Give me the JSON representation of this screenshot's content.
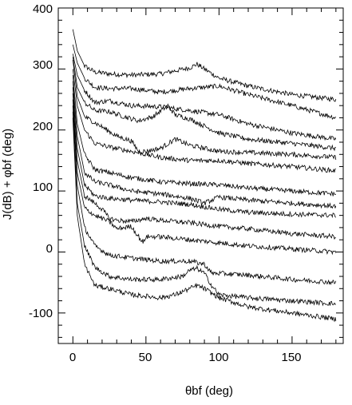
{
  "chart_data": {
    "type": "line",
    "title": "",
    "xlabel": "θbf (deg)",
    "ylabel": "J(dB) + φbf (deg)",
    "xlim": [
      -10,
      185
    ],
    "ylim": [
      -150,
      400
    ],
    "xticks": [
      0,
      50,
      100,
      150
    ],
    "yticks": [
      -100,
      0,
      100,
      200,
      300,
      400
    ],
    "grid": false,
    "series": [
      {
        "x": [
          0,
          3,
          8,
          15,
          25,
          40,
          60,
          80,
          85,
          90,
          100,
          120,
          150,
          180
        ],
        "y": [
          365,
          330,
          305,
          295,
          292,
          290,
          292,
          302,
          308,
          300,
          285,
          272,
          258,
          250
        ]
      },
      {
        "x": [
          0,
          3,
          8,
          15,
          25,
          40,
          60,
          80,
          100,
          120,
          150,
          180
        ],
        "y": [
          340,
          310,
          285,
          270,
          268,
          268,
          262,
          268,
          272,
          258,
          240,
          220
        ]
      },
      {
        "x": [
          0,
          3,
          8,
          15,
          25,
          40,
          60,
          80,
          100,
          120,
          150,
          180
        ],
        "y": [
          325,
          290,
          265,
          245,
          248,
          240,
          238,
          232,
          225,
          210,
          195,
          185
        ]
      },
      {
        "x": [
          0,
          3,
          8,
          15,
          25,
          35,
          45,
          55,
          65,
          70,
          80,
          100,
          120,
          150,
          180
        ],
        "y": [
          320,
          270,
          245,
          232,
          230,
          222,
          215,
          222,
          240,
          225,
          218,
          195,
          185,
          178,
          170
        ]
      },
      {
        "x": [
          0,
          3,
          8,
          15,
          20,
          30,
          40,
          45,
          50,
          60,
          70,
          80,
          100,
          150,
          180
        ],
        "y": [
          315,
          255,
          222,
          212,
          205,
          190,
          182,
          165,
          165,
          170,
          185,
          175,
          165,
          160,
          155
        ]
      },
      {
        "x": [
          0,
          3,
          8,
          15,
          25,
          40,
          60,
          80,
          100,
          120,
          150,
          180
        ],
        "y": [
          300,
          240,
          200,
          178,
          172,
          165,
          155,
          150,
          150,
          145,
          140,
          133
        ]
      },
      {
        "x": [
          0,
          3,
          8,
          15,
          25,
          40,
          60,
          80,
          100,
          120,
          150,
          180
        ],
        "y": [
          290,
          210,
          160,
          135,
          130,
          122,
          115,
          112,
          110,
          105,
          100,
          95
        ]
      },
      {
        "x": [
          0,
          3,
          8,
          15,
          25,
          40,
          60,
          80,
          90,
          100,
          120,
          150,
          180
        ],
        "y": [
          280,
          190,
          130,
          115,
          110,
          100,
          95,
          88,
          80,
          90,
          85,
          80,
          75
        ]
      },
      {
        "x": [
          0,
          3,
          8,
          15,
          25,
          40,
          60,
          80,
          100,
          120,
          150,
          180
        ],
        "y": [
          270,
          170,
          110,
          92,
          88,
          85,
          82,
          78,
          70,
          65,
          62,
          60
        ]
      },
      {
        "x": [
          0,
          3,
          8,
          15,
          20,
          25,
          30,
          40,
          50,
          60,
          80,
          100,
          120,
          150,
          180
        ],
        "y": [
          260,
          150,
          92,
          80,
          70,
          55,
          52,
          50,
          55,
          52,
          48,
          42,
          38,
          30,
          25
        ]
      },
      {
        "x": [
          0,
          3,
          8,
          15,
          20,
          25,
          30,
          40,
          48,
          50,
          60,
          80,
          100,
          120,
          150,
          180
        ],
        "y": [
          250,
          130,
          72,
          60,
          55,
          50,
          38,
          42,
          15,
          25,
          25,
          20,
          15,
          10,
          5,
          0
        ]
      },
      {
        "x": [
          0,
          3,
          8,
          15,
          25,
          40,
          60,
          80,
          90,
          95,
          100,
          120,
          150,
          180
        ],
        "y": [
          240,
          110,
          40,
          10,
          -5,
          -10,
          -15,
          -15,
          -20,
          -35,
          -35,
          -38,
          -45,
          -50
        ]
      },
      {
        "x": [
          0,
          3,
          8,
          15,
          25,
          40,
          60,
          75,
          80,
          85,
          90,
          95,
          100,
          120,
          150,
          180
        ],
        "y": [
          230,
          80,
          10,
          -25,
          -40,
          -45,
          -45,
          -40,
          -30,
          -27,
          -35,
          -55,
          -70,
          -75,
          -80,
          -85
        ]
      },
      {
        "x": [
          0,
          3,
          8,
          15,
          25,
          40,
          60,
          70,
          80,
          85,
          90,
          100,
          120,
          150,
          180
        ],
        "y": [
          220,
          60,
          -20,
          -55,
          -60,
          -70,
          -75,
          -70,
          -60,
          -55,
          -60,
          -75,
          -90,
          -100,
          -110
        ]
      }
    ]
  },
  "labels": {
    "x_tick_labels": [
      "0",
      "50",
      "100",
      "150"
    ],
    "y_tick_labels": [
      "-100",
      "0",
      "100",
      "200",
      "300",
      "400"
    ]
  }
}
